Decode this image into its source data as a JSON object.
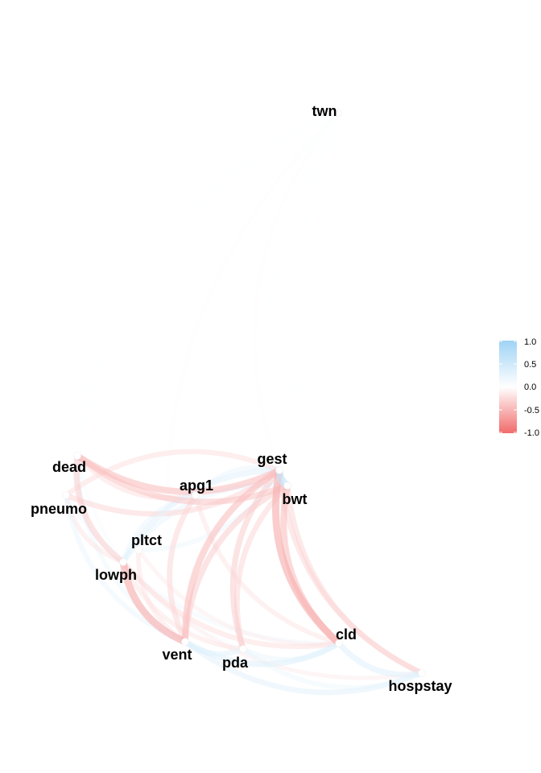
{
  "nodes": [
    {
      "id": "twn",
      "label": "twn"
    },
    {
      "id": "dead",
      "label": "dead"
    },
    {
      "id": "pneumo",
      "label": "pneumo"
    },
    {
      "id": "gest",
      "label": "gest"
    },
    {
      "id": "bwt",
      "label": "bwt"
    },
    {
      "id": "apg1",
      "label": "apg1"
    },
    {
      "id": "pltct",
      "label": "pltct"
    },
    {
      "id": "lowph",
      "label": "lowph"
    },
    {
      "id": "vent",
      "label": "vent"
    },
    {
      "id": "pda",
      "label": "pda"
    },
    {
      "id": "cld",
      "label": "cld"
    },
    {
      "id": "hospstay",
      "label": "hospstay"
    }
  ],
  "edges": [
    {
      "from": "twn",
      "to": "vent",
      "weight": 0.05
    },
    {
      "from": "twn",
      "to": "cld",
      "weight": 0.03
    },
    {
      "from": "twn",
      "to": "hospstay",
      "weight": 0.02
    },
    {
      "from": "twn",
      "to": "dead",
      "weight": 0.02
    },
    {
      "from": "twn",
      "to": "gest",
      "weight": -0.02
    },
    {
      "from": "dead",
      "to": "gest",
      "weight": -0.45
    },
    {
      "from": "dead",
      "to": "bwt",
      "weight": -0.4
    },
    {
      "from": "dead",
      "to": "lowph",
      "weight": -0.35
    },
    {
      "from": "dead",
      "to": "vent",
      "weight": 0.2
    },
    {
      "from": "dead",
      "to": "pda",
      "weight": 0.1
    },
    {
      "from": "dead",
      "to": "apg1",
      "weight": -0.25
    },
    {
      "from": "pneumo",
      "to": "gest",
      "weight": -0.3
    },
    {
      "from": "pneumo",
      "to": "vent",
      "weight": 0.25
    },
    {
      "from": "pneumo",
      "to": "cld",
      "weight": 0.15
    },
    {
      "from": "pneumo",
      "to": "lowph",
      "weight": -0.2
    },
    {
      "from": "gest",
      "to": "bwt",
      "weight": 0.6
    },
    {
      "from": "gest",
      "to": "cld",
      "weight": -0.55
    },
    {
      "from": "gest",
      "to": "vent",
      "weight": -0.45
    },
    {
      "from": "gest",
      "to": "pda",
      "weight": -0.35
    },
    {
      "from": "gest",
      "to": "hospstay",
      "weight": -0.3
    },
    {
      "from": "gest",
      "to": "lowph",
      "weight": 0.3
    },
    {
      "from": "gest",
      "to": "apg1",
      "weight": 0.25
    },
    {
      "from": "gest",
      "to": "pneumo",
      "weight": -0.25
    },
    {
      "from": "bwt",
      "to": "cld",
      "weight": -0.45
    },
    {
      "from": "bwt",
      "to": "vent",
      "weight": -0.35
    },
    {
      "from": "bwt",
      "to": "hospstay",
      "weight": -0.3
    },
    {
      "from": "bwt",
      "to": "pda",
      "weight": -0.3
    },
    {
      "from": "bwt",
      "to": "lowph",
      "weight": 0.25
    },
    {
      "from": "apg1",
      "to": "vent",
      "weight": -0.3
    },
    {
      "from": "apg1",
      "to": "lowph",
      "weight": 0.25
    },
    {
      "from": "apg1",
      "to": "cld",
      "weight": -0.2
    },
    {
      "from": "pltct",
      "to": "vent",
      "weight": -0.2
    },
    {
      "from": "pltct",
      "to": "cld",
      "weight": -0.15
    },
    {
      "from": "pltct",
      "to": "gest",
      "weight": 0.2
    },
    {
      "from": "lowph",
      "to": "vent",
      "weight": -0.55
    },
    {
      "from": "lowph",
      "to": "cld",
      "weight": -0.25
    },
    {
      "from": "lowph",
      "to": "pda",
      "weight": -0.2
    },
    {
      "from": "lowph",
      "to": "hospstay",
      "weight": -0.15
    },
    {
      "from": "vent",
      "to": "cld",
      "weight": 0.35
    },
    {
      "from": "vent",
      "to": "pda",
      "weight": 0.3
    },
    {
      "from": "vent",
      "to": "hospstay",
      "weight": 0.3
    },
    {
      "from": "pda",
      "to": "cld",
      "weight": 0.25
    },
    {
      "from": "pda",
      "to": "hospstay",
      "weight": 0.2
    },
    {
      "from": "cld",
      "to": "hospstay",
      "weight": 0.35
    }
  ],
  "legend": {
    "ticks": [
      "1.0",
      "0.5",
      "0.0",
      "-0.5",
      "-1.0"
    ],
    "colors": {
      "positive": "#9fd3f5",
      "zero": "#ffffff",
      "negative": "#f16b6b"
    }
  }
}
